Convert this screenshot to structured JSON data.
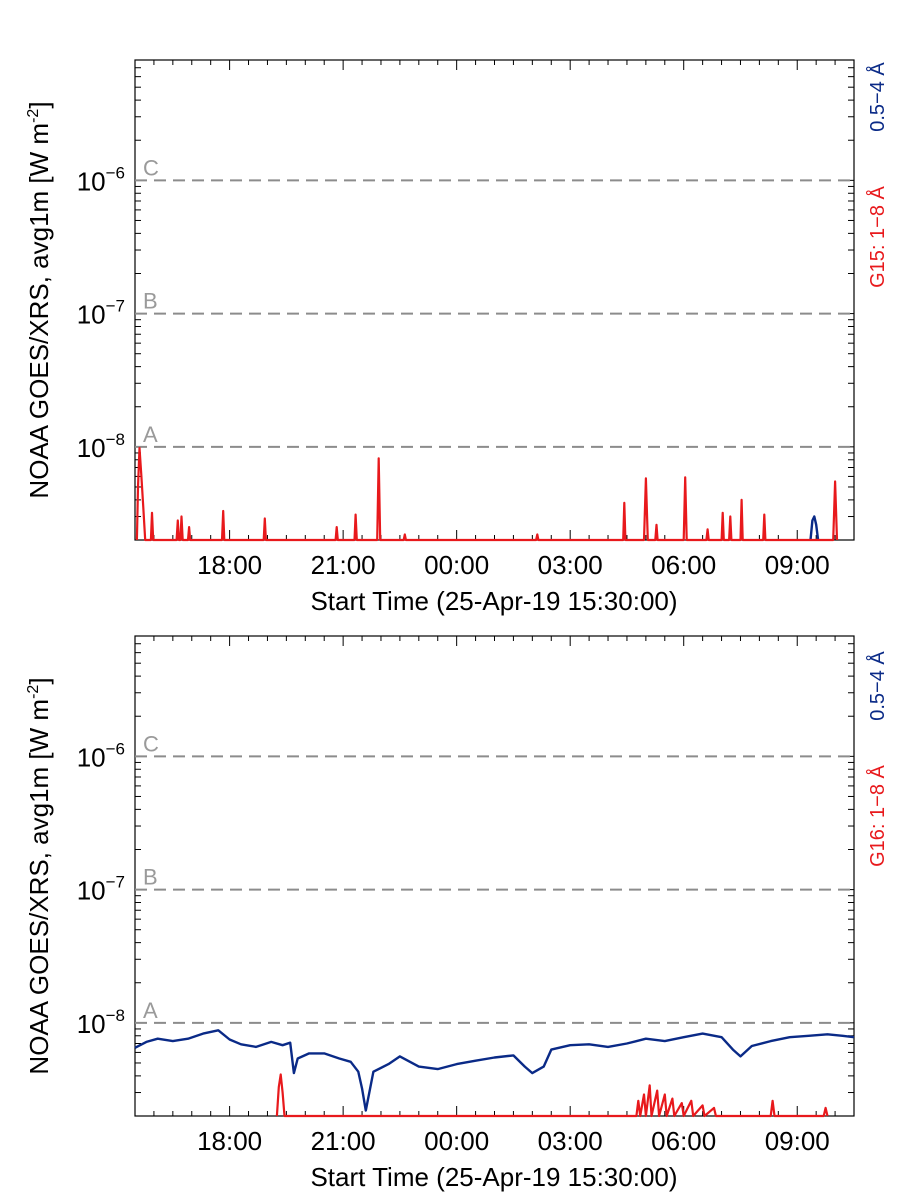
{
  "chart_data": [
    {
      "type": "line",
      "panel": "top",
      "ylabel": "NOAA GOES/XRS, avg1m [W m",
      "ylabel_sup": "-2",
      "ylabel_end": "]",
      "xlabel": "Start Time (25-Apr-19 15:30:00)",
      "x_range_hours": [
        0,
        19
      ],
      "x_ticks": [
        {
          "h": 2.5,
          "label": "18:00"
        },
        {
          "h": 5.5,
          "label": "21:00"
        },
        {
          "h": 8.5,
          "label": "00:00"
        },
        {
          "h": 11.5,
          "label": "03:00"
        },
        {
          "h": 14.5,
          "label": "06:00"
        },
        {
          "h": 17.5,
          "label": "09:00"
        }
      ],
      "yscale": "log",
      "ylim": [
        2e-09,
        8e-06
      ],
      "y_ticks": [
        {
          "v": 1e-08,
          "base": "10",
          "exp": "−8"
        },
        {
          "v": 1e-07,
          "base": "10",
          "exp": "−7"
        },
        {
          "v": 1e-06,
          "base": "10",
          "exp": "−6"
        }
      ],
      "reference_lines": [
        {
          "value": 1e-08,
          "label": "A"
        },
        {
          "value": 1e-07,
          "label": "B"
        },
        {
          "value": 1e-06,
          "label": "C"
        }
      ],
      "legend": {
        "short": "0.5−4 Å",
        "long": "G15: 1−8 Å",
        "placement": "right, vertical"
      },
      "series": [
        {
          "name": "0.5−4 Å",
          "color": "#0a2a87",
          "points": [
            [
              17.85,
              2e-09
            ],
            [
              17.9,
              2.8e-09
            ],
            [
              17.95,
              3e-09
            ],
            [
              18.0,
              2.6e-09
            ],
            [
              18.05,
              2e-09
            ]
          ]
        },
        {
          "name": "G15: 1−8 Å",
          "color": "#e8191c",
          "points": [
            [
              0.05,
              2e-09
            ],
            [
              0.08,
              5e-09
            ],
            [
              0.12,
              9.8e-09
            ],
            [
              0.17,
              6e-09
            ],
            [
              0.22,
              3.5e-09
            ],
            [
              0.27,
              2e-09
            ],
            [
              0.42,
              2e-09
            ],
            [
              0.45,
              3.2e-09
            ],
            [
              0.48,
              2e-09
            ],
            [
              1.1,
              2e-09
            ],
            [
              1.13,
              2.8e-09
            ],
            [
              1.16,
              2e-09
            ],
            [
              1.2,
              2e-09
            ],
            [
              1.23,
              3e-09
            ],
            [
              1.26,
              2e-09
            ],
            [
              1.4,
              2e-09
            ],
            [
              1.43,
              2.5e-09
            ],
            [
              1.46,
              2e-09
            ],
            [
              2.3,
              2e-09
            ],
            [
              2.33,
              3.3e-09
            ],
            [
              2.36,
              2e-09
            ],
            [
              3.4,
              2e-09
            ],
            [
              3.43,
              2.9e-09
            ],
            [
              3.46,
              2e-09
            ],
            [
              5.3,
              2e-09
            ],
            [
              5.33,
              2.5e-09
            ],
            [
              5.36,
              2e-09
            ],
            [
              5.8,
              2e-09
            ],
            [
              5.83,
              3.1e-09
            ],
            [
              5.86,
              2e-09
            ],
            [
              6.4,
              2e-09
            ],
            [
              6.44,
              8.2e-09
            ],
            [
              6.48,
              2e-09
            ],
            [
              7.1,
              2e-09
            ],
            [
              7.13,
              2.2e-09
            ],
            [
              7.16,
              2e-09
            ],
            [
              10.6,
              2e-09
            ],
            [
              10.63,
              2.2e-09
            ],
            [
              10.66,
              2e-09
            ],
            [
              12.9,
              2e-09
            ],
            [
              12.93,
              3.8e-09
            ],
            [
              12.96,
              2e-09
            ],
            [
              13.45,
              2e-09
            ],
            [
              13.5,
              5.8e-09
            ],
            [
              13.55,
              2e-09
            ],
            [
              13.75,
              2e-09
            ],
            [
              13.78,
              2.6e-09
            ],
            [
              13.81,
              2e-09
            ],
            [
              14.5,
              2e-09
            ],
            [
              14.54,
              5.9e-09
            ],
            [
              14.58,
              2e-09
            ],
            [
              15.1,
              2e-09
            ],
            [
              15.13,
              2.4e-09
            ],
            [
              15.16,
              2e-09
            ],
            [
              15.5,
              2e-09
            ],
            [
              15.53,
              3.2e-09
            ],
            [
              15.56,
              2e-09
            ],
            [
              15.7,
              2e-09
            ],
            [
              15.73,
              3e-09
            ],
            [
              15.76,
              2e-09
            ],
            [
              16.0,
              2e-09
            ],
            [
              16.03,
              4e-09
            ],
            [
              16.06,
              2e-09
            ],
            [
              16.6,
              2e-09
            ],
            [
              16.63,
              3.1e-09
            ],
            [
              16.66,
              2e-09
            ],
            [
              18.45,
              2e-09
            ],
            [
              18.5,
              5.5e-09
            ],
            [
              18.55,
              2e-09
            ]
          ]
        }
      ]
    },
    {
      "type": "line",
      "panel": "bottom",
      "ylabel": "NOAA GOES/XRS, avg1m [W m",
      "ylabel_sup": "-2",
      "ylabel_end": "]",
      "xlabel": "Start Time (25-Apr-19 15:30:00)",
      "x_range_hours": [
        0,
        19
      ],
      "x_ticks": [
        {
          "h": 2.5,
          "label": "18:00"
        },
        {
          "h": 5.5,
          "label": "21:00"
        },
        {
          "h": 8.5,
          "label": "00:00"
        },
        {
          "h": 11.5,
          "label": "03:00"
        },
        {
          "h": 14.5,
          "label": "06:00"
        },
        {
          "h": 17.5,
          "label": "09:00"
        }
      ],
      "yscale": "log",
      "ylim": [
        2e-09,
        8e-06
      ],
      "y_ticks": [
        {
          "v": 1e-08,
          "base": "10",
          "exp": "−8"
        },
        {
          "v": 1e-07,
          "base": "10",
          "exp": "−7"
        },
        {
          "v": 1e-06,
          "base": "10",
          "exp": "−6"
        }
      ],
      "reference_lines": [
        {
          "value": 1e-08,
          "label": "A"
        },
        {
          "value": 1e-07,
          "label": "B"
        },
        {
          "value": 1e-06,
          "label": "C"
        }
      ],
      "legend": {
        "short": "0.5−4 Å",
        "long": "G16: 1−8 Å",
        "placement": "right, vertical"
      },
      "series": [
        {
          "name": "0.5−4 Å",
          "color": "#0a2a87",
          "points": [
            [
              0.0,
              6.5e-09
            ],
            [
              0.3,
              7.2e-09
            ],
            [
              0.6,
              7.6e-09
            ],
            [
              1.0,
              7.3e-09
            ],
            [
              1.4,
              7.6e-09
            ],
            [
              1.8,
              8.3e-09
            ],
            [
              2.2,
              8.8e-09
            ],
            [
              2.5,
              7.5e-09
            ],
            [
              2.8,
              6.9e-09
            ],
            [
              3.2,
              6.6e-09
            ],
            [
              3.6,
              7.2e-09
            ],
            [
              3.9,
              6.8e-09
            ],
            [
              4.1,
              7.1e-09
            ],
            [
              4.2,
              4.2e-09
            ],
            [
              4.3,
              5.4e-09
            ],
            [
              4.6,
              5.9e-09
            ],
            [
              5.0,
              5.9e-09
            ],
            [
              5.4,
              5.4e-09
            ],
            [
              5.7,
              5.1e-09
            ],
            [
              5.9,
              4.3e-09
            ],
            [
              6.0,
              3.2e-09
            ],
            [
              6.1,
              2.2e-09
            ],
            [
              6.3,
              4.3e-09
            ],
            [
              6.7,
              4.9e-09
            ],
            [
              7.0,
              5.6e-09
            ],
            [
              7.5,
              4.7e-09
            ],
            [
              8.0,
              4.5e-09
            ],
            [
              8.5,
              4.9e-09
            ],
            [
              9.0,
              5.2e-09
            ],
            [
              9.5,
              5.5e-09
            ],
            [
              10.0,
              5.7e-09
            ],
            [
              10.3,
              4.7e-09
            ],
            [
              10.5,
              4.2e-09
            ],
            [
              10.8,
              4.7e-09
            ],
            [
              11.0,
              6.3e-09
            ],
            [
              11.5,
              6.8e-09
            ],
            [
              12.0,
              6.9e-09
            ],
            [
              12.5,
              6.6e-09
            ],
            [
              13.0,
              7e-09
            ],
            [
              13.5,
              7.6e-09
            ],
            [
              14.0,
              7.3e-09
            ],
            [
              14.5,
              7.8e-09
            ],
            [
              15.0,
              8.3e-09
            ],
            [
              15.5,
              7.8e-09
            ],
            [
              15.8,
              6.3e-09
            ],
            [
              16.0,
              5.6e-09
            ],
            [
              16.3,
              6.7e-09
            ],
            [
              16.8,
              7.3e-09
            ],
            [
              17.3,
              7.8e-09
            ],
            [
              17.8,
              8e-09
            ],
            [
              18.3,
              8.2e-09
            ],
            [
              18.7,
              8e-09
            ],
            [
              19.0,
              7.8e-09
            ]
          ]
        },
        {
          "name": "G16: 1−8 Å",
          "color": "#e8191c",
          "points": [
            [
              3.75,
              2e-09
            ],
            [
              3.8,
              3.3e-09
            ],
            [
              3.85,
              4.1e-09
            ],
            [
              3.9,
              3e-09
            ],
            [
              3.95,
              2e-09
            ],
            [
              13.25,
              2e-09
            ],
            [
              13.3,
              2.6e-09
            ],
            [
              13.35,
              2e-09
            ],
            [
              13.45,
              2.9e-09
            ],
            [
              13.5,
              2e-09
            ],
            [
              13.6,
              3.4e-09
            ],
            [
              13.65,
              2e-09
            ],
            [
              13.8,
              3.1e-09
            ],
            [
              13.85,
              2e-09
            ],
            [
              14.0,
              2.9e-09
            ],
            [
              14.05,
              2e-09
            ],
            [
              14.2,
              2.7e-09
            ],
            [
              14.25,
              2e-09
            ],
            [
              14.45,
              2.5e-09
            ],
            [
              14.5,
              2e-09
            ],
            [
              14.7,
              2.6e-09
            ],
            [
              14.75,
              2e-09
            ],
            [
              15.0,
              2.4e-09
            ],
            [
              15.05,
              2e-09
            ],
            [
              15.3,
              2.3e-09
            ],
            [
              15.35,
              2e-09
            ],
            [
              16.8,
              2e-09
            ],
            [
              16.85,
              2.6e-09
            ],
            [
              16.9,
              2e-09
            ],
            [
              18.2,
              2e-09
            ],
            [
              18.25,
              2.3e-09
            ],
            [
              18.3,
              2e-09
            ]
          ]
        }
      ]
    }
  ]
}
